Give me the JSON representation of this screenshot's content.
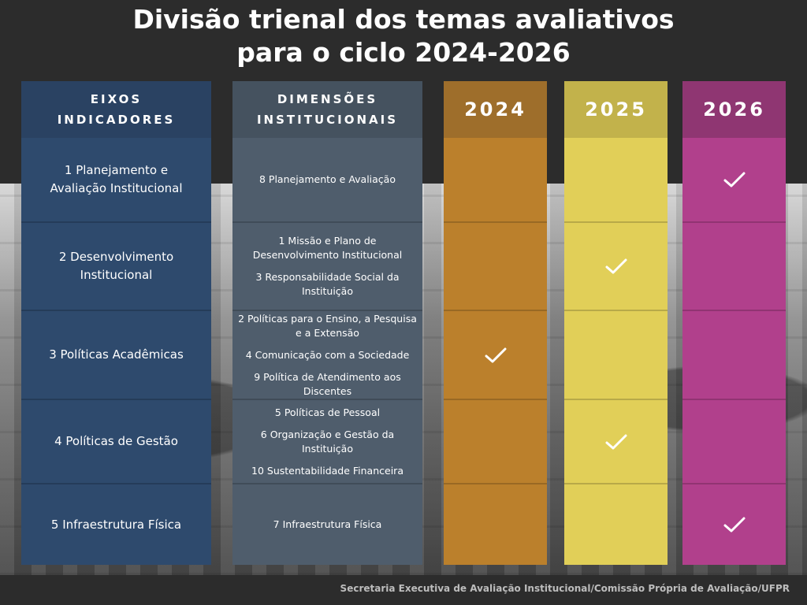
{
  "title": {
    "line1": "Divisão trienal dos temas avaliativos",
    "line2": "para o ciclo 2024-2026"
  },
  "headers": {
    "eixos": [
      "EIXOS",
      "INDICADORES"
    ],
    "dimensoes": [
      "DIMENSÕES",
      "INSTITUCIONAIS"
    ],
    "years": [
      "2024",
      "2025",
      "2026"
    ]
  },
  "rows": [
    {
      "eixo": [
        "1 Planejamento e",
        "Avaliação Institucional"
      ],
      "dimensoes": [
        [
          "8 Planejamento e Avaliação"
        ]
      ],
      "year": "2026"
    },
    {
      "eixo": [
        "2 Desenvolvimento",
        "Institucional"
      ],
      "dimensoes": [
        [
          "1 Missão e Plano de",
          "Desenvolvimento Institucional"
        ],
        [
          "3 Responsabilidade Social da",
          "Instituição"
        ]
      ],
      "year": "2025"
    },
    {
      "eixo": [
        "3 Políticas Acadêmicas"
      ],
      "dimensoes": [
        [
          "2 Políticas para o Ensino, a Pesquisa",
          "e a Extensão"
        ],
        [
          "4 Comunicação com a Sociedade"
        ],
        [
          "9 Política de Atendimento aos",
          "Discentes"
        ]
      ],
      "year": "2024"
    },
    {
      "eixo": [
        "4 Políticas de Gestão"
      ],
      "dimensoes": [
        [
          "5 Políticas de Pessoal"
        ],
        [
          "6 Organização e Gestão da",
          "Instituição"
        ],
        [
          "10 Sustentabilidade Financeira"
        ]
      ],
      "year": "2025"
    },
    {
      "eixo": [
        "5 Infraestrutura Física"
      ],
      "dimensoes": [
        [
          "7 Infraestrutura Física"
        ]
      ],
      "year": "2026"
    }
  ],
  "colors": {
    "eixos": "#2e4a6d",
    "dimensoes": "#4f5d6c",
    "y2024": "#bb802c",
    "y2025": "#e1cf58",
    "y2026": "#b1408c"
  },
  "icons": {
    "mark": "checkmark-icon"
  },
  "footer": "Secretaria Executiva de Avaliação Institucional/Comissão Própria de Avaliação/UFPR"
}
